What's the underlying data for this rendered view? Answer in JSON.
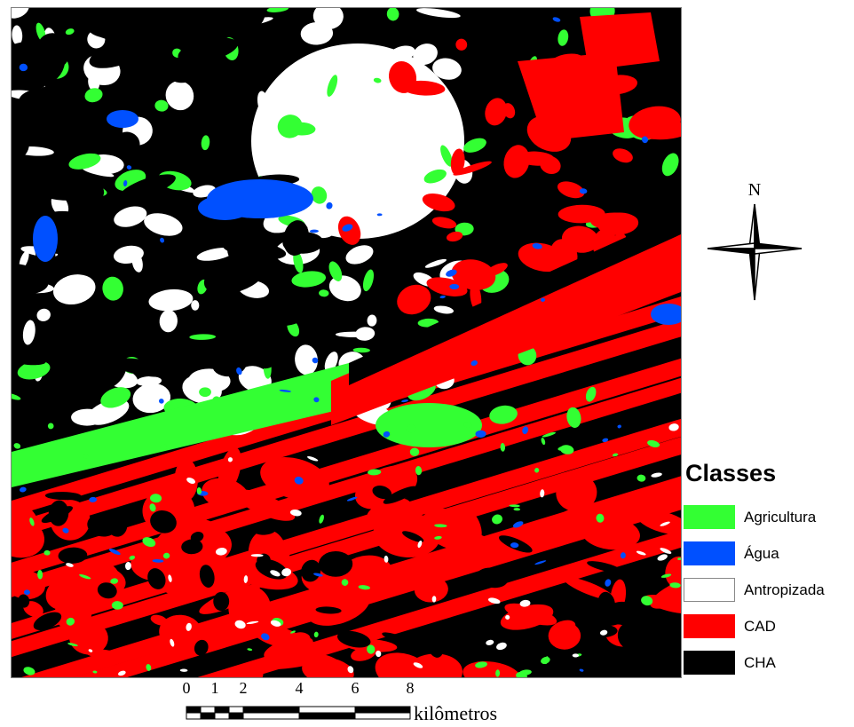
{
  "legend": {
    "title": "Classes",
    "items": [
      {
        "label": "Agricultura",
        "color": "#33ff33"
      },
      {
        "label": "Água",
        "color": "#0050ff"
      },
      {
        "label": "Antropizada",
        "color": "#ffffff"
      },
      {
        "label": "CAD",
        "color": "#ff0000"
      },
      {
        "label": "CHA",
        "color": "#000000"
      }
    ]
  },
  "north_arrow": {
    "label": "N",
    "icon": "compass-rose-icon"
  },
  "scale_bar": {
    "ticks": [
      "0",
      "1",
      "2",
      "4",
      "6",
      "8"
    ],
    "tick_values_km": [
      0,
      1,
      2,
      4,
      6,
      8
    ],
    "unit": "kilômetros"
  },
  "map": {
    "type": "land-cover-classification",
    "colors": {
      "agricultura": "#33ff33",
      "agua": "#0050ff",
      "antropizada": "#ffffff",
      "cad": "#ff0000",
      "cha": "#000000"
    }
  }
}
